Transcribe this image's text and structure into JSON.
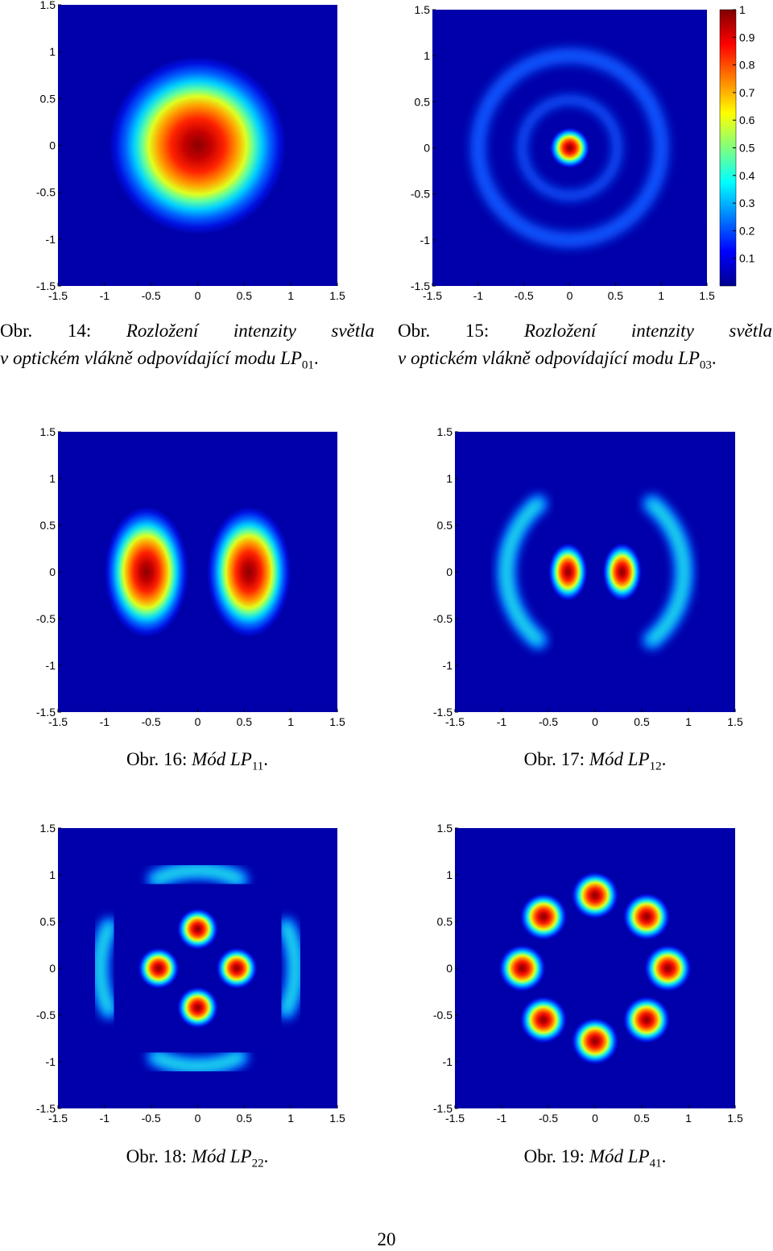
{
  "figures": [
    {
      "xlim": [
        -1.5,
        1.5
      ],
      "ylim": [
        -1.5,
        1.5
      ],
      "xticks": [
        -1.5,
        -1,
        -0.5,
        0,
        0.5,
        1,
        1.5
      ],
      "yticks": [
        -1.5,
        -1,
        -0.5,
        0,
        0.5,
        1,
        1.5
      ],
      "caption": {
        "label": "Obr. 14:",
        "lines": [
          "Rozložení intenzity světla",
          "v optickém vlákně odpovídající modu"
        ],
        "mode": "LP",
        "sub": "01",
        "end": "."
      }
    },
    {
      "xlim": [
        -1.5,
        1.5
      ],
      "ylim": [
        -1.5,
        1.5
      ],
      "xticks": [
        -1.5,
        -1,
        -0.5,
        0,
        0.5,
        1,
        1.5
      ],
      "yticks": [
        -1.5,
        -1,
        -0.5,
        0,
        0.5,
        1,
        1.5
      ],
      "caption": {
        "label": "Obr. 15:",
        "lines": [
          "Rozložení intenzity světla",
          "v optickém vlákně odpovídající modu"
        ],
        "mode": "LP",
        "sub": "03",
        "end": "."
      }
    },
    {
      "xlim": [
        -1.5,
        1.5
      ],
      "ylim": [
        -1.5,
        1.5
      ],
      "xticks": [
        -1.5,
        -1,
        -0.5,
        0,
        0.5,
        1,
        1.5
      ],
      "yticks": [
        -1.5,
        -1,
        -0.5,
        0,
        0.5,
        1,
        1.5
      ],
      "caption": {
        "label": "Obr. 16:",
        "lines": [
          "Mód"
        ],
        "mode": "LP",
        "sub": "11",
        "end": "."
      }
    },
    {
      "xlim": [
        -1.5,
        1.5
      ],
      "ylim": [
        -1.5,
        1.5
      ],
      "xticks": [
        -1.5,
        -1,
        -0.5,
        0,
        0.5,
        1,
        1.5
      ],
      "yticks": [
        -1.5,
        -1,
        -0.5,
        0,
        0.5,
        1,
        1.5
      ],
      "caption": {
        "label": "Obr. 17:",
        "lines": [
          "Mód"
        ],
        "mode": "LP",
        "sub": "12",
        "end": "."
      }
    },
    {
      "xlim": [
        -1.5,
        1.5
      ],
      "ylim": [
        -1.5,
        1.5
      ],
      "xticks": [
        -1.5,
        -1,
        -0.5,
        0,
        0.5,
        1,
        1.5
      ],
      "yticks": [
        -1.5,
        -1,
        -0.5,
        0,
        0.5,
        1,
        1.5
      ],
      "caption": {
        "label": "Obr. 18:",
        "lines": [
          "Mód"
        ],
        "mode": "LP",
        "sub": "22",
        "end": "."
      }
    },
    {
      "xlim": [
        -1.5,
        1.5
      ],
      "ylim": [
        -1.5,
        1.5
      ],
      "xticks": [
        -1.5,
        -1,
        -0.5,
        0,
        0.5,
        1,
        1.5
      ],
      "yticks": [
        -1.5,
        -1,
        -0.5,
        0,
        0.5,
        1,
        1.5
      ],
      "caption": {
        "label": "Obr. 19:",
        "lines": [
          "Mód"
        ],
        "mode": "LP",
        "sub": "41",
        "end": "."
      }
    }
  ],
  "colorbar": {
    "lim": [
      0,
      1
    ],
    "ticks": [
      0.1,
      0.2,
      0.3,
      0.4,
      0.5,
      0.6,
      0.7,
      0.8,
      0.9,
      1
    ]
  },
  "page_number": "20"
}
